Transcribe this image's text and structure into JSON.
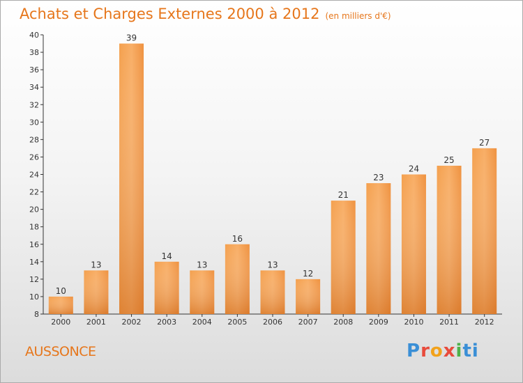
{
  "header": {
    "title": "Achats et Charges Externes 2000 à 2012",
    "unit": "(en milliers d'€)"
  },
  "footer": {
    "place": "AUSSONCE",
    "logo": [
      "P",
      "r",
      "o",
      "x",
      "i",
      "ti"
    ]
  },
  "colors": {
    "accent": "#e6761b",
    "bar_light": "#f7a558",
    "bar_dark": "#d8701c"
  },
  "chart_data": {
    "type": "bar",
    "categories": [
      "2000",
      "2001",
      "2002",
      "2003",
      "2004",
      "2005",
      "2006",
      "2007",
      "2008",
      "2009",
      "2010",
      "2011",
      "2012"
    ],
    "values": [
      10,
      13,
      39,
      14,
      13,
      16,
      13,
      12,
      21,
      23,
      24,
      25,
      27
    ],
    "title": "Achats et Charges Externes 2000 à 2012",
    "ylim": [
      8,
      40
    ],
    "yticks": [
      8,
      10,
      12,
      14,
      16,
      18,
      20,
      22,
      24,
      26,
      28,
      30,
      32,
      34,
      36,
      38,
      40
    ],
    "grid": false,
    "data_labels": true
  }
}
